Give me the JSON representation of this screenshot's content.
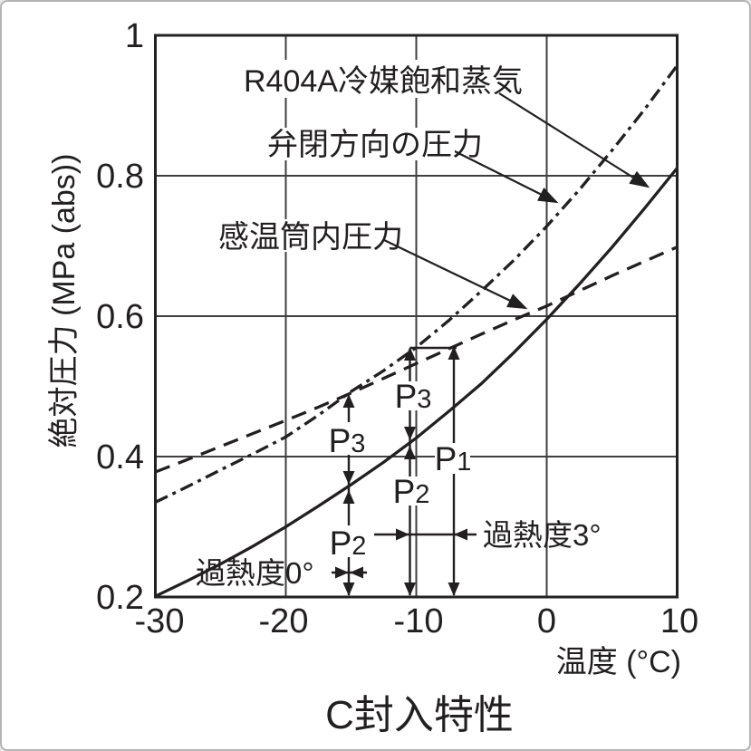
{
  "page_title": "C封入特性",
  "chart_data": {
    "type": "line",
    "title": "C封入特性",
    "xlabel": "温度 (°C)",
    "ylabel": "絶対圧力 (MPa (abs))",
    "xlim": [
      -30,
      10
    ],
    "ylim": [
      0.2,
      1.0
    ],
    "grid": true,
    "legend_position": "inline-annotations",
    "x_tick_labels": [
      "-30",
      "-20",
      "-10",
      "0",
      "10"
    ],
    "x_tick_values": [
      -30,
      -20,
      -10,
      0,
      10
    ],
    "y_tick_labels": [
      "1",
      "0.8",
      "0.6",
      "0.4",
      "0.2"
    ],
    "y_tick_values": [
      1.0,
      0.8,
      0.6,
      0.4,
      0.2
    ],
    "series": [
      {
        "name": "R404A冷媒飽和蒸気",
        "style": "solid",
        "points": [
          [
            -30,
            0.201
          ],
          [
            -27.5,
            0.2235
          ],
          [
            -25,
            0.247
          ],
          [
            -22.5,
            0.2725
          ],
          [
            -20,
            0.3
          ],
          [
            -17.5,
            0.3295
          ],
          [
            -15,
            0.36
          ],
          [
            -12.5,
            0.392
          ],
          [
            -10,
            0.4265
          ],
          [
            -7.5,
            0.4645
          ],
          [
            -5,
            0.504
          ],
          [
            -2.5,
            0.5485
          ],
          [
            0,
            0.5955
          ],
          [
            2.5,
            0.6455
          ],
          [
            5,
            0.698
          ],
          [
            7.5,
            0.7535
          ],
          [
            10,
            0.811
          ]
        ]
      },
      {
        "name": "弁閉方向の圧力",
        "style": "dash-dot",
        "points": [
          [
            -30,
            0.335
          ],
          [
            -27.5,
            0.3575
          ],
          [
            -25,
            0.381
          ],
          [
            -22.5,
            0.404
          ],
          [
            -20,
            0.428
          ],
          [
            -17.5,
            0.459
          ],
          [
            -15,
            0.4925
          ],
          [
            -12.5,
            0.5225
          ],
          [
            -10,
            0.5555
          ],
          [
            -7.5,
            0.594
          ],
          [
            -5,
            0.636
          ],
          [
            -2.5,
            0.68
          ],
          [
            0,
            0.728
          ],
          [
            2.5,
            0.78
          ],
          [
            5,
            0.836
          ],
          [
            7.5,
            0.8945
          ],
          [
            10,
            0.957
          ]
        ]
      },
      {
        "name": "感温筒内圧力",
        "style": "dashed",
        "points": [
          [
            -30,
            0.378
          ],
          [
            -27.5,
            0.396
          ],
          [
            -25,
            0.4145
          ],
          [
            -22.5,
            0.433
          ],
          [
            -20,
            0.4515
          ],
          [
            -17.5,
            0.4705
          ],
          [
            -15,
            0.4905
          ],
          [
            -12.5,
            0.5115
          ],
          [
            -10,
            0.5325
          ],
          [
            -7.5,
            0.5535
          ],
          [
            -5,
            0.5745
          ],
          [
            -2.5,
            0.595
          ],
          [
            0,
            0.6145
          ],
          [
            2.5,
            0.636
          ],
          [
            5,
            0.6575
          ],
          [
            7.5,
            0.678
          ],
          [
            10,
            0.6985
          ]
        ]
      }
    ],
    "annotations": {
      "p1": {
        "base": "P",
        "sub": "1"
      },
      "p2": {
        "base": "P",
        "sub": "2"
      },
      "p3": {
        "base": "P",
        "sub": "3"
      },
      "superheat_0": "過熱度0°",
      "superheat_3": "過熱度3°"
    }
  }
}
